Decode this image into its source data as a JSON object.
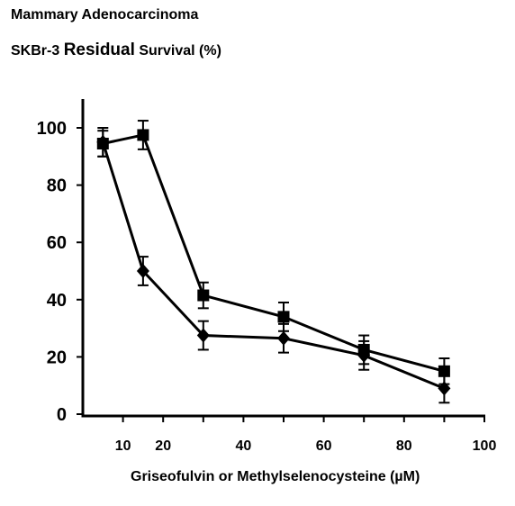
{
  "title": "Mammary Adenocarcinoma",
  "subtitle": {
    "cell_line": "SKBr-3",
    "residual": "Residual",
    "survival": "Survival (%)"
  },
  "chart_data": {
    "type": "line",
    "xlabel": "Griseofulvin or Methylselenocysteine (µM)",
    "ylabel": "",
    "xlim": [
      0,
      100
    ],
    "ylim": [
      0,
      100
    ],
    "x_ticks": [
      10,
      20,
      40,
      60,
      80,
      100
    ],
    "y_ticks": [
      0,
      20,
      40,
      60,
      80,
      100
    ],
    "grid": false,
    "legend": "none",
    "series": [
      {
        "marker": "square",
        "color": "#000000",
        "x": [
          5,
          15,
          30,
          50,
          70,
          90
        ],
        "y": [
          94.5,
          97.5,
          41.5,
          34,
          22.5,
          15
        ],
        "error": [
          4.5,
          5,
          4.5,
          5,
          5,
          4.5
        ]
      },
      {
        "marker": "diamond",
        "color": "#000000",
        "x": [
          5,
          15,
          30,
          50,
          70,
          90
        ],
        "y": [
          95,
          50,
          27.5,
          26.5,
          20.5,
          9
        ],
        "error": [
          5,
          5,
          5,
          5,
          5,
          5
        ]
      }
    ]
  }
}
